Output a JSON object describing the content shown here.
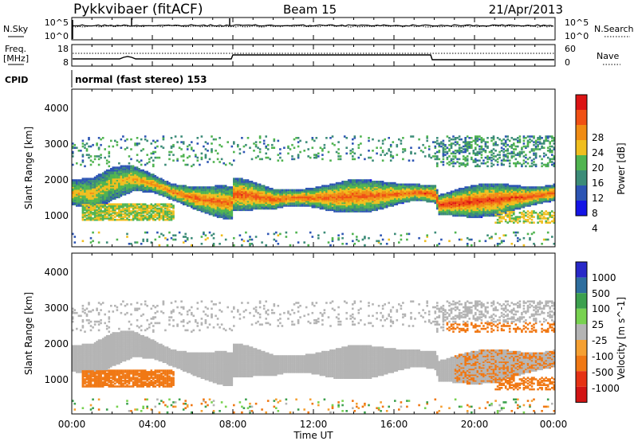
{
  "header": {
    "station": "Pykkvibaer (fitACF)",
    "beam": "Beam 15",
    "date": "21/Apr/2013"
  },
  "top_panels": {
    "nsky_label": "N.Sky",
    "nsearch_label": "N.Search",
    "nsky_ticks": [
      "10^5",
      "10^0"
    ],
    "nsearch_ticks": [
      "10^5",
      "10^0"
    ],
    "freq_label_1": "Freq.",
    "freq_label_2": "[MHz]",
    "freq_ticks": [
      "18",
      "8"
    ],
    "nave_label": "Nave",
    "nave_ticks": [
      "60",
      "0"
    ],
    "cpid_label": "CPID",
    "cpid_value": "normal (fast stereo) 153"
  },
  "x_axis": {
    "title": "Time UT",
    "ticks": [
      "00:00",
      "04:00",
      "08:00",
      "12:00",
      "16:00",
      "20:00",
      "00:00"
    ],
    "range_hours": [
      0,
      24
    ]
  },
  "colors": {
    "power": [
      "#1414e6",
      "#2d55b4",
      "#3c8c78",
      "#50b450",
      "#f0be1e",
      "#f08c14",
      "#f05014",
      "#dc1414"
    ],
    "velocity": [
      "#2828c8",
      "#2e6e9e",
      "#3ca04e",
      "#78d250",
      "#b4b4b4",
      "#f5a032",
      "#f07814",
      "#e63214",
      "#d21414"
    ]
  },
  "chart_data": [
    {
      "type": "heatmap",
      "ylabel": "Slant Range [km]",
      "ylim": [
        180,
        4600
      ],
      "yticks": [
        "4000",
        "3000",
        "2000",
        "1000"
      ],
      "colorbar_label": "Power [dB]",
      "colorbar_ticks": [
        "28",
        "24",
        "20",
        "16",
        "12",
        "8",
        "4"
      ],
      "scale": [
        0,
        32
      ],
      "x_hours": [
        0,
        1,
        2,
        3,
        4,
        5,
        6,
        7,
        7.9,
        8,
        9,
        10,
        11,
        12,
        13,
        14,
        15,
        16,
        17,
        18,
        18.2,
        19,
        20,
        21,
        22,
        23,
        24
      ],
      "main_band": {
        "center_km": [
          1700,
          1650,
          1950,
          2100,
          1950,
          1700,
          1550,
          1450,
          1400,
          1650,
          1600,
          1500,
          1550,
          1550,
          1550,
          1600,
          1600,
          1650,
          1700,
          1650,
          1350,
          1400,
          1450,
          1500,
          1550,
          1600,
          1700
        ],
        "power_db": [
          20,
          19,
          18,
          21,
          22,
          24,
          26,
          25,
          24,
          27,
          26,
          26,
          25,
          25,
          26,
          26,
          25,
          25,
          26,
          27,
          29,
          29,
          28,
          28,
          27,
          27,
          26
        ]
      },
      "lower_band_km": {
        "from_hour": 0.5,
        "to_hour": 5,
        "center_km": 1150,
        "power_db": 16
      },
      "far_echoes_km": [
        2600,
        3300
      ]
    },
    {
      "type": "heatmap",
      "ylabel": "Slant Range [km]",
      "ylim": [
        180,
        4600
      ],
      "yticks": [
        "4000",
        "3000",
        "2000",
        "1000"
      ],
      "colorbar_label": "Velocity [m s^-1]",
      "colorbar_ticks": [
        "1000",
        "500",
        "100",
        "25",
        "-25",
        "-100",
        "-500",
        "-1000"
      ],
      "scale": [
        -1000,
        1000
      ],
      "ground_scatter": {
        "from_hour": 0,
        "to_hour": 19,
        "velocity": 0
      },
      "negative_patch": {
        "from_hour": 0,
        "to_hour": 4.5,
        "center_km": 1150,
        "velocity": -300
      },
      "late_patch": {
        "from_hour": 19,
        "to_hour": 24,
        "center_km": 2300,
        "velocity": -150
      }
    }
  ]
}
